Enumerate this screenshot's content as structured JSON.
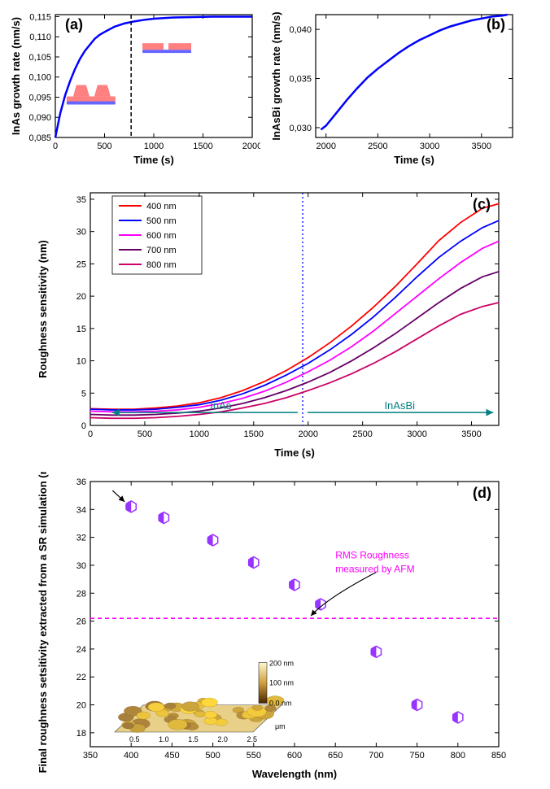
{
  "panelA": {
    "type": "line",
    "label": "(a)",
    "xlabel": "Time (s)",
    "ylabel": "InAs growth rate (nm/s)",
    "xlim": [
      0,
      2000
    ],
    "ylim": [
      0.085,
      0.1155
    ],
    "xticks": [
      0,
      500,
      1000,
      1500,
      2000
    ],
    "yticks": [
      0.085,
      0.09,
      0.095,
      0.1,
      0.105,
      0.11,
      0.115
    ],
    "ytick_labels": [
      "0,085",
      "0,090",
      "0,095",
      "0,100",
      "0,105",
      "0,110",
      "0,115"
    ],
    "line_color": "#0000ff",
    "line_width": 2.5,
    "dashed_x": 770,
    "dashed_color": "#000000",
    "data": [
      [
        0,
        0.085
      ],
      [
        50,
        0.091
      ],
      [
        100,
        0.0955
      ],
      [
        150,
        0.099
      ],
      [
        200,
        0.102
      ],
      [
        250,
        0.1045
      ],
      [
        300,
        0.1065
      ],
      [
        350,
        0.108
      ],
      [
        400,
        0.1095
      ],
      [
        450,
        0.1105
      ],
      [
        500,
        0.1112
      ],
      [
        600,
        0.1125
      ],
      [
        700,
        0.1133
      ],
      [
        800,
        0.1138
      ],
      [
        900,
        0.1142
      ],
      [
        1000,
        0.1145
      ],
      [
        1200,
        0.1148
      ],
      [
        1400,
        0.1149
      ],
      [
        1600,
        0.115
      ],
      [
        1800,
        0.115
      ],
      [
        2000,
        0.115
      ]
    ],
    "inset1_color": "#ff8080",
    "inset2_color": "#ff8080"
  },
  "panelB": {
    "type": "line",
    "label": "(b)",
    "xlabel": "Time (s)",
    "ylabel": "InAsBi growth rate (nm/s)",
    "xlim": [
      1900,
      3800
    ],
    "ylim": [
      0.029,
      0.0415
    ],
    "xticks": [
      2000,
      2500,
      3000,
      3500
    ],
    "yticks": [
      0.03,
      0.035,
      0.04
    ],
    "ytick_labels": [
      "0,030",
      "0,035",
      "0,040"
    ],
    "line_color": "#0000ff",
    "line_width": 2.5,
    "data": [
      [
        1950,
        0.0298
      ],
      [
        2000,
        0.0302
      ],
      [
        2100,
        0.0315
      ],
      [
        2200,
        0.0328
      ],
      [
        2300,
        0.034
      ],
      [
        2400,
        0.0351
      ],
      [
        2500,
        0.036
      ],
      [
        2600,
        0.0368
      ],
      [
        2700,
        0.0376
      ],
      [
        2800,
        0.0383
      ],
      [
        2900,
        0.0389
      ],
      [
        3000,
        0.0394
      ],
      [
        3100,
        0.0399
      ],
      [
        3200,
        0.0403
      ],
      [
        3300,
        0.0406
      ],
      [
        3400,
        0.0409
      ],
      [
        3500,
        0.0411
      ],
      [
        3600,
        0.0413
      ],
      [
        3700,
        0.0414
      ],
      [
        3750,
        0.0415
      ]
    ]
  },
  "panelC": {
    "type": "line",
    "label": "(c)",
    "xlabel": "Time (s)",
    "ylabel": "Roughness sensitivity (nm)",
    "xlim": [
      0,
      3750
    ],
    "ylim": [
      0,
      36
    ],
    "xticks": [
      0,
      500,
      1000,
      1500,
      2000,
      2500,
      3000,
      3500
    ],
    "yticks": [
      0,
      5,
      10,
      15,
      20,
      25,
      30,
      35
    ],
    "dashed_x": 1950,
    "dashed_color": "#0000ff",
    "arrow_color": "#008080",
    "region1_label": "InAs",
    "region2_label": "InAsBi",
    "legend": [
      {
        "label": "400 nm",
        "color": "#ff0000"
      },
      {
        "label": "500 nm",
        "color": "#0000ff"
      },
      {
        "label": "600 nm",
        "color": "#ff00ff"
      },
      {
        "label": "700 nm",
        "color": "#660066"
      },
      {
        "label": "800 nm",
        "color": "#cc0066"
      }
    ],
    "series": [
      {
        "color": "#ff0000",
        "data": [
          [
            0,
            2.6
          ],
          [
            200,
            2.5
          ],
          [
            400,
            2.5
          ],
          [
            600,
            2.7
          ],
          [
            800,
            3.0
          ],
          [
            1000,
            3.5
          ],
          [
            1200,
            4.3
          ],
          [
            1400,
            5.4
          ],
          [
            1600,
            6.8
          ],
          [
            1800,
            8.5
          ],
          [
            2000,
            10.5
          ],
          [
            2200,
            12.8
          ],
          [
            2400,
            15.4
          ],
          [
            2600,
            18.3
          ],
          [
            2800,
            21.5
          ],
          [
            3000,
            25.0
          ],
          [
            3200,
            28.6
          ],
          [
            3400,
            31.4
          ],
          [
            3600,
            33.6
          ],
          [
            3750,
            34.3
          ]
        ]
      },
      {
        "color": "#0000ff",
        "data": [
          [
            0,
            2.5
          ],
          [
            200,
            2.4
          ],
          [
            400,
            2.4
          ],
          [
            600,
            2.5
          ],
          [
            800,
            2.8
          ],
          [
            1000,
            3.2
          ],
          [
            1200,
            3.9
          ],
          [
            1400,
            4.9
          ],
          [
            1600,
            6.2
          ],
          [
            1800,
            7.8
          ],
          [
            2000,
            9.6
          ],
          [
            2200,
            11.7
          ],
          [
            2400,
            14.1
          ],
          [
            2600,
            16.8
          ],
          [
            2800,
            19.8
          ],
          [
            3000,
            23.0
          ],
          [
            3200,
            26.0
          ],
          [
            3400,
            28.5
          ],
          [
            3600,
            30.6
          ],
          [
            3750,
            31.7
          ]
        ]
      },
      {
        "color": "#ff00ff",
        "data": [
          [
            0,
            2.2
          ],
          [
            200,
            2.1
          ],
          [
            400,
            2.1
          ],
          [
            600,
            2.2
          ],
          [
            800,
            2.4
          ],
          [
            1000,
            2.8
          ],
          [
            1200,
            3.4
          ],
          [
            1400,
            4.2
          ],
          [
            1600,
            5.3
          ],
          [
            1800,
            6.7
          ],
          [
            2000,
            8.3
          ],
          [
            2200,
            10.1
          ],
          [
            2400,
            12.2
          ],
          [
            2600,
            14.6
          ],
          [
            2800,
            17.3
          ],
          [
            3000,
            20.0
          ],
          [
            3200,
            22.7
          ],
          [
            3400,
            25.2
          ],
          [
            3600,
            27.4
          ],
          [
            3750,
            28.5
          ]
        ]
      },
      {
        "color": "#660066",
        "data": [
          [
            0,
            1.7
          ],
          [
            200,
            1.6
          ],
          [
            400,
            1.6
          ],
          [
            600,
            1.7
          ],
          [
            800,
            1.9
          ],
          [
            1000,
            2.2
          ],
          [
            1200,
            2.7
          ],
          [
            1400,
            3.4
          ],
          [
            1600,
            4.3
          ],
          [
            1800,
            5.4
          ],
          [
            2000,
            6.7
          ],
          [
            2200,
            8.2
          ],
          [
            2400,
            10.0
          ],
          [
            2600,
            12.0
          ],
          [
            2800,
            14.2
          ],
          [
            3000,
            16.6
          ],
          [
            3200,
            19.0
          ],
          [
            3400,
            21.2
          ],
          [
            3600,
            23.0
          ],
          [
            3750,
            23.8
          ]
        ]
      },
      {
        "color": "#cc0066",
        "data": [
          [
            0,
            1.2
          ],
          [
            200,
            1.1
          ],
          [
            400,
            1.1
          ],
          [
            600,
            1.2
          ],
          [
            800,
            1.4
          ],
          [
            1000,
            1.7
          ],
          [
            1200,
            2.1
          ],
          [
            1400,
            2.7
          ],
          [
            1600,
            3.4
          ],
          [
            1800,
            4.3
          ],
          [
            2000,
            5.4
          ],
          [
            2200,
            6.6
          ],
          [
            2400,
            8.0
          ],
          [
            2600,
            9.6
          ],
          [
            2800,
            11.4
          ],
          [
            3000,
            13.4
          ],
          [
            3200,
            15.4
          ],
          [
            3400,
            17.2
          ],
          [
            3600,
            18.4
          ],
          [
            3750,
            19.0
          ]
        ]
      }
    ]
  },
  "panelD": {
    "type": "scatter",
    "label": "(d)",
    "xlabel": "Wavelength (nm)",
    "ylabel": "Final roughness setsitivity extracted from a SR simulation (nm)",
    "xlim": [
      350,
      850
    ],
    "ylim": [
      17,
      36
    ],
    "xticks": [
      350,
      400,
      450,
      500,
      550,
      600,
      650,
      700,
      750,
      800,
      850
    ],
    "yticks": [
      18,
      20,
      22,
      24,
      26,
      28,
      30,
      32,
      34,
      36
    ],
    "marker_color": "#9933ff",
    "marker_size": 7,
    "rms_line_y": 26.2,
    "rms_line_color": "#ff00ff",
    "rms_label": "RMS Roughness measured by AFM",
    "rms_label_color": "#ff00ff",
    "data": [
      [
        400,
        34.2
      ],
      [
        440,
        33.4
      ],
      [
        500,
        31.8
      ],
      [
        550,
        30.2
      ],
      [
        600,
        28.6
      ],
      [
        632,
        27.2
      ],
      [
        700,
        23.8
      ],
      [
        750,
        20.0
      ],
      [
        800,
        19.1
      ]
    ],
    "afm_inset": {
      "colorbar_max": "200 nm",
      "colorbar_mid": "100 nm",
      "colorbar_min": "0.0 nm",
      "axis_labels": [
        "0.5",
        "1.0",
        "1.5",
        "2.0",
        "2.5"
      ],
      "axis_unit": "μm"
    }
  }
}
